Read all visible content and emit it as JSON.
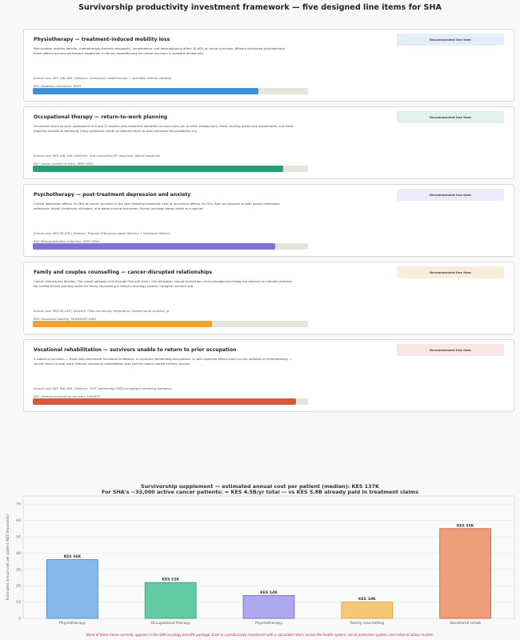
{
  "page_title": "Survivorship productivity investment framework — five designed line items for SHA",
  "items": [
    {
      "title": "Physiotherapy — treatment-induced mobility loss",
      "body": "Post-surgical mobility deficits, chemotherapy-induced neuropathy, lymphedema, and deconditioning affect 40-60% of cancer survivors. Without structured physiotherapy these deficits become permanent disabilities. In Kenya, physiotherapy for cancer survivors is available almost excl",
      "badge": "Recommended line item",
      "meta": "Annual cost: KES 24K–48K  |  Delivery: Community health worker + specialist referral pathway",
      "roi": "ROI: Disability prevention: HIGH",
      "fill": 0.82,
      "color": "#3d8fd9",
      "badge_bg": "#e3edf8"
    },
    {
      "title": "Occupational therapy — return-to-work planning",
      "body": "Structured return-to-work assessment at 6 and 12 months post-treatment identifies survivors who can re-enter employment, those needing workp lace adjustments, and those requiring vocational retraining. Every additional month of delayed return to work increases the probability of p",
      "badge": "Recommended line item",
      "meta": "Annual cost: KES 15K–30K  |  Delivery: SHA-contracted OT resources; digital triage tool",
      "roi": "ROI: Labour market re-entry: VERY HIGH",
      "fill": 0.91,
      "color": "#24a072",
      "badge_bg": "#e2f2ea"
    },
    {
      "title": "Psychotherapy — post-treatment depression and anxiety",
      "body": "Clinical depression affects 20-38% of cancer survivors in the year following treatment. Fear of recurrence affects 40-70%. Both are associat ed with poorer medication adherence, higher healthcare utilisation, and worse survival outcomes. Psycho-oncology barely exists as a speciali",
      "badge": "Recommended line item",
      "meta": "Annual cost: KES 8K–20K  |  Delivery: Trained CHW group-based delivery + individual referral",
      "roi": "ROI: Rehospitalisation reduction: VERY HIGH",
      "fill": 0.88,
      "color": "#7f73d6",
      "badge_bg": "#ecebf9"
    },
    {
      "title": "Family and couples counselling — cancer-disrupted relationships",
      "body": "Cancer restructures families. The causal pathway runs through financial strain, role disruption, sexual dysfunction, and prolonged psycholog ical demand on intimate partners. No funded clinical pathway exists for family counselling in Kenya's oncology system. Caregiver burnout and",
      "badge": "Recommended line item",
      "meta": "Annual cost: KES 6K–12K  |  Delivery: Faith-community integration; trained social workers; gr",
      "roi": "ROI: Household stability: MODERATE-HIGH",
      "fill": 0.65,
      "color": "#eea12f",
      "badge_bg": "#f9eedc"
    },
    {
      "title": "Vocational rehabilitation — survivors unable to return to prior occupation",
      "body": "A subset of survivors — those with permanent functional limitations, in physically demanding occupations, or with cognitive effects from cra nial radiation or chemotherapy — cannot return to prior work. Without vocational rehabilitation they exit the labour market entirely, becomi",
      "badge": "Recommended line item",
      "meta": "Annual cost: KES 30K–80K  |  Delivery: TVET partnership; NITA-recognised retraining pathways;",
      "roi": "ROI: Lifetime productivity recovery: HIGHEST",
      "fill": 0.955,
      "color": "#d9573a",
      "badge_bg": "#f9e6e2"
    }
  ],
  "chart_data": {
    "type": "bar",
    "title": "Survivorship supplement — estimated annual cost per patient (median): KES 137K",
    "subtitle": "For SHA's ~33,000 active cancer patients: ≈ KES 4.5B/yr total — vs KES 5.8B already paid in treatment claims",
    "ylabel": "Estimated annual cost per patient (KES thousands)",
    "ylim": [
      0,
      75
    ],
    "yticks": [
      "0",
      "10",
      "20",
      "30",
      "40",
      "50",
      "60",
      "70"
    ],
    "categories": [
      "Physiotherapy",
      "Occupational therapy",
      "Psychotherapy",
      "Family counselling",
      "Vocational rehab"
    ],
    "values": [
      36,
      22,
      14,
      10,
      55
    ],
    "labels": [
      "KES 36K",
      "KES 22K",
      "KES 14K",
      "KES 10K",
      "KES 55K"
    ],
    "colors": [
      "#86b8ea",
      "#63cba4",
      "#aea8ee",
      "#f7c778",
      "#ef9c7b"
    ],
    "edge_colors": [
      "#3d7fc4",
      "#2a9a6e",
      "#6c61c8",
      "#d89a2b",
      "#c9583a"
    ],
    "grid": true
  },
  "footnote": "None of these items currently appears in the SHA oncology benefits package.  Each is a productivity investment with a calculable return across the health system, social protection system, and national labour market."
}
